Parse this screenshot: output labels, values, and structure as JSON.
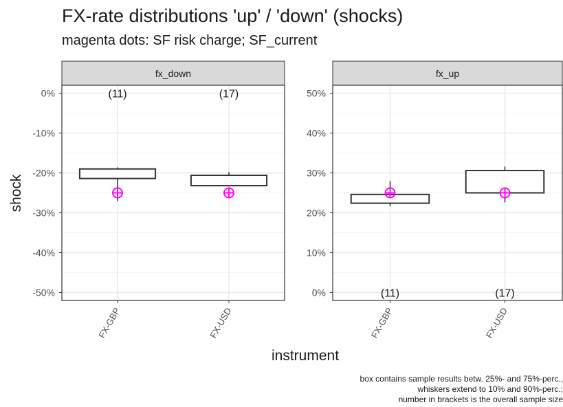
{
  "title": "FX-rate distributions 'up' / 'down' (shocks)",
  "subtitle": "magenta dots: SF risk charge; SF_current",
  "caption": [
    "box contains sample results betw. 25%- and 75%-perc.,",
    "whiskers extend to 10% and 90%-perc.;",
    "number in brackets is the overall sample size"
  ],
  "chart_data": {
    "type": "boxplot",
    "xlabel": "instrument",
    "ylabel": "shock",
    "categories": [
      "FX-GBP",
      "FX-USD"
    ],
    "colors": {
      "marker": "#ff00ff",
      "box": "#333333",
      "strip": "#d9d9d9",
      "grid": "#ebebeb"
    },
    "panels": [
      {
        "name": "fx_down",
        "ylim": [
          -0.52,
          0.02
        ],
        "ticks": [
          0,
          -0.1,
          -0.2,
          -0.3,
          -0.4,
          -0.5
        ],
        "tick_labels": [
          "0%",
          "-10%",
          "-20%",
          "-30%",
          "-40%",
          "-50%"
        ],
        "count_label_y": 0,
        "boxes": [
          {
            "category": "FX-GBP",
            "p10": -0.27,
            "q1": -0.214,
            "q3": -0.19,
            "p90": -0.186,
            "sf": -0.25,
            "n_label": "(11)"
          },
          {
            "category": "FX-USD",
            "p10": -0.232,
            "q1": -0.232,
            "q3": -0.206,
            "p90": -0.198,
            "sf": -0.25,
            "n_label": "(17)"
          }
        ]
      },
      {
        "name": "fx_up",
        "ylim": [
          -0.02,
          0.52
        ],
        "ticks": [
          0,
          0.1,
          0.2,
          0.3,
          0.4,
          0.5
        ],
        "tick_labels": [
          "0%",
          "10%",
          "20%",
          "30%",
          "40%",
          "50%"
        ],
        "count_label_y": 0,
        "boxes": [
          {
            "category": "FX-GBP",
            "p10": 0.216,
            "q1": 0.224,
            "q3": 0.246,
            "p90": 0.28,
            "sf": 0.25,
            "n_label": "(11)"
          },
          {
            "category": "FX-USD",
            "p10": 0.226,
            "q1": 0.25,
            "q3": 0.306,
            "p90": 0.316,
            "sf": 0.25,
            "n_label": "(17)"
          }
        ]
      }
    ]
  }
}
